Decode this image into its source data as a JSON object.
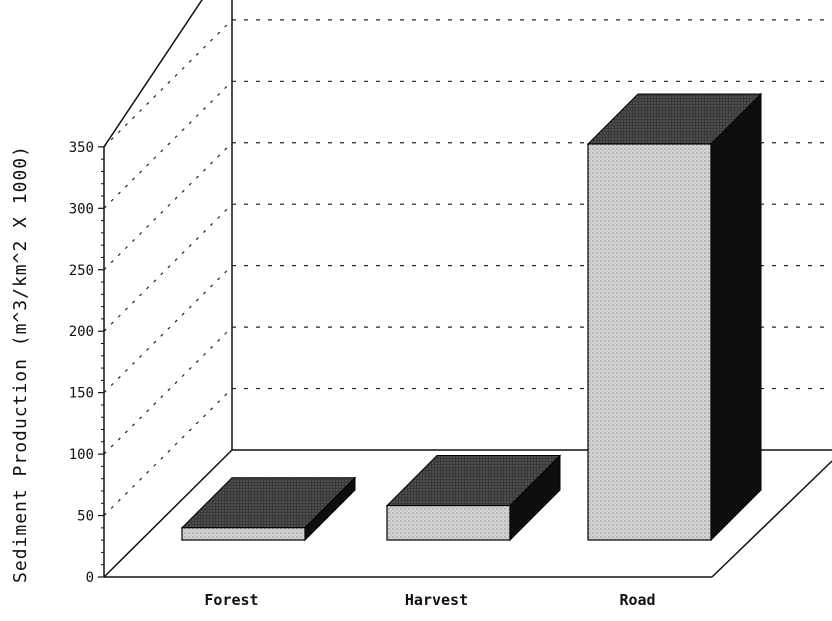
{
  "chart_data": {
    "type": "bar",
    "categories": [
      "Forest",
      "Harvest",
      "Road"
    ],
    "values": [
      10,
      28,
      322
    ],
    "xlabel": "",
    "ylabel": "Sediment Production (m^3/km^2 X 1000)",
    "ylim": [
      0,
      350
    ],
    "yticks": [
      "0",
      "50",
      "100",
      "150",
      "200",
      "250",
      "300",
      "350"
    ],
    "grid": true,
    "projection": "3d"
  }
}
